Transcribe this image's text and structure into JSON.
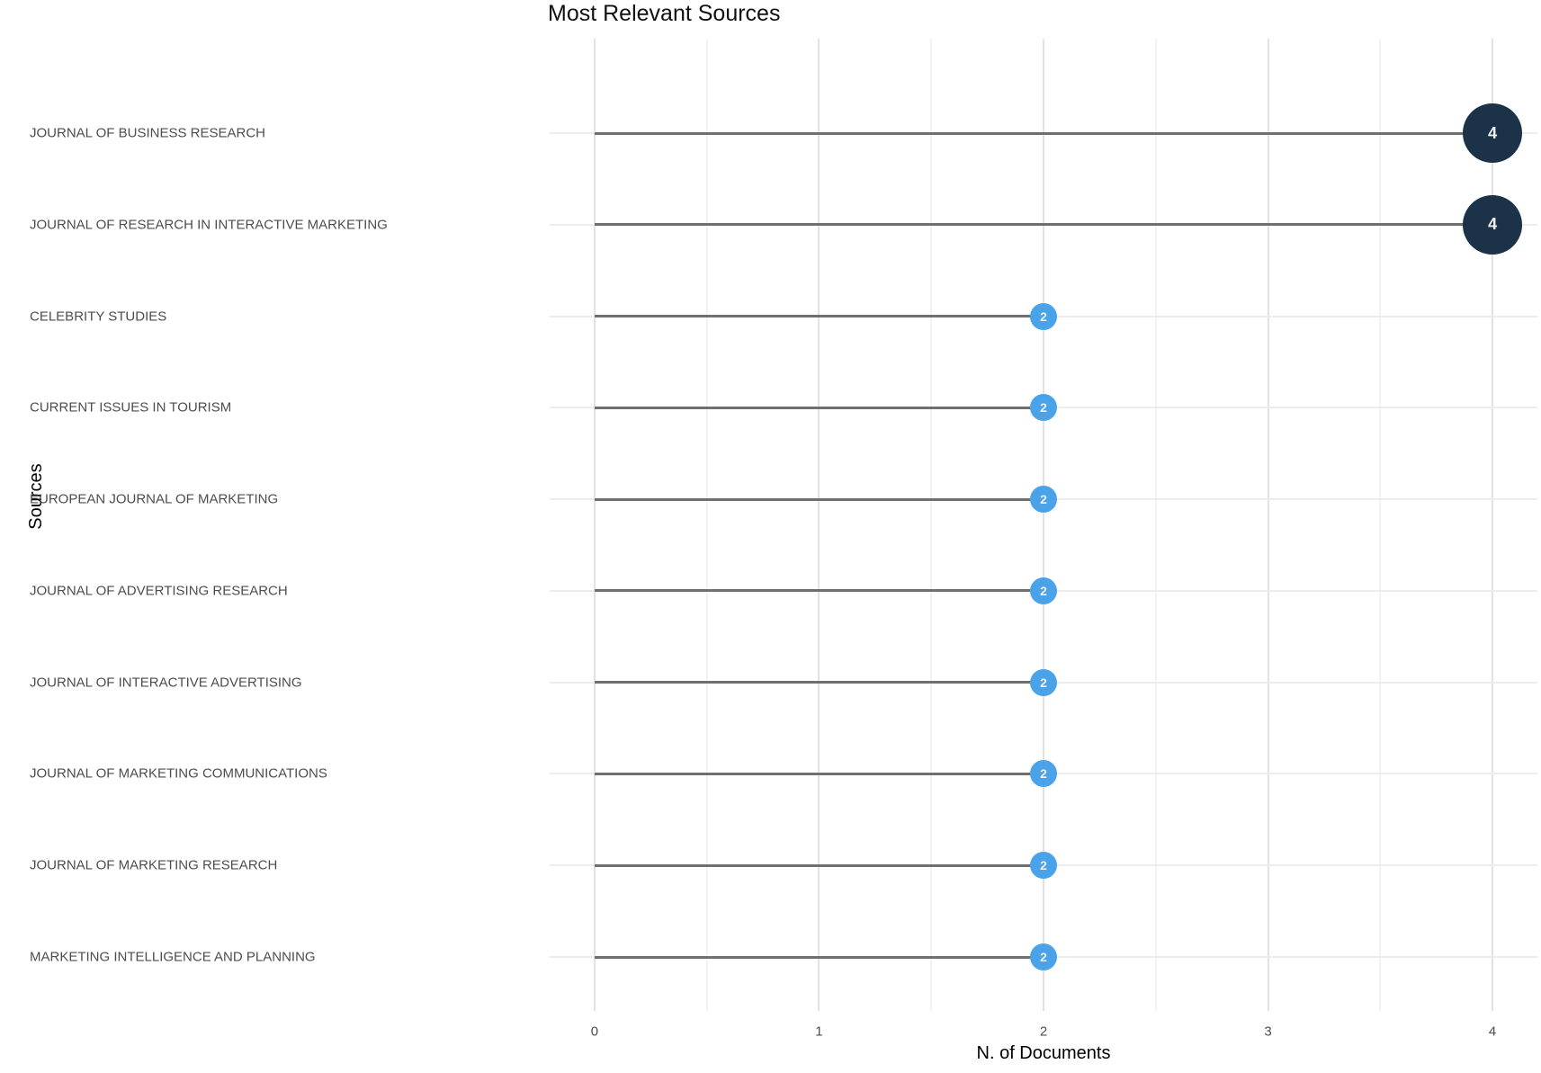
{
  "header": {
    "title": "Most Relevant Sources"
  },
  "chart_data": {
    "type": "bar",
    "variant": "horizontal-lollipop",
    "title": "Most Relevant Sources",
    "xlabel": "N. of Documents",
    "ylabel": "Sources",
    "categories": [
      "JOURNAL OF BUSINESS RESEARCH",
      "JOURNAL OF RESEARCH IN INTERACTIVE MARKETING",
      "CELEBRITY STUDIES",
      "CURRENT ISSUES IN TOURISM",
      "EUROPEAN JOURNAL OF MARKETING",
      "JOURNAL OF ADVERTISING RESEARCH",
      "JOURNAL OF INTERACTIVE ADVERTISING",
      "JOURNAL OF MARKETING COMMUNICATIONS",
      "JOURNAL OF MARKETING RESEARCH",
      "MARKETING INTELLIGENCE AND PLANNING"
    ],
    "values": [
      4,
      4,
      2,
      2,
      2,
      2,
      2,
      2,
      2,
      2
    ],
    "point_labels": [
      "4",
      "4",
      "2",
      "2",
      "2",
      "2",
      "2",
      "2",
      "2",
      "2"
    ],
    "point_colors": [
      "#1c3249",
      "#1c3249",
      "#4aa2e8",
      "#4aa2e8",
      "#4aa2e8",
      "#4aa2e8",
      "#4aa2e8",
      "#4aa2e8",
      "#4aa2e8",
      "#4aa2e8"
    ],
    "point_radii": [
      33,
      33,
      15,
      15,
      15,
      15,
      15,
      15,
      15,
      15
    ],
    "xticks": [
      0,
      1,
      2,
      3,
      4
    ],
    "xtick_labels": [
      "0",
      "1",
      "2",
      "3",
      "4"
    ],
    "xlim": [
      -0.2,
      4.2
    ],
    "grid": true,
    "legend": false,
    "colors": {
      "stem": "#6f6f6f",
      "grid_major": "#e2e2e2",
      "grid_minor": "#f2f2f2",
      "grid_row": "#ececec",
      "tick_label": "#4d4d4d",
      "title": "#111111",
      "point_value_high": "#1c3249",
      "point_value_low": "#4aa2e8",
      "point_text": "#f2f2f2"
    }
  }
}
